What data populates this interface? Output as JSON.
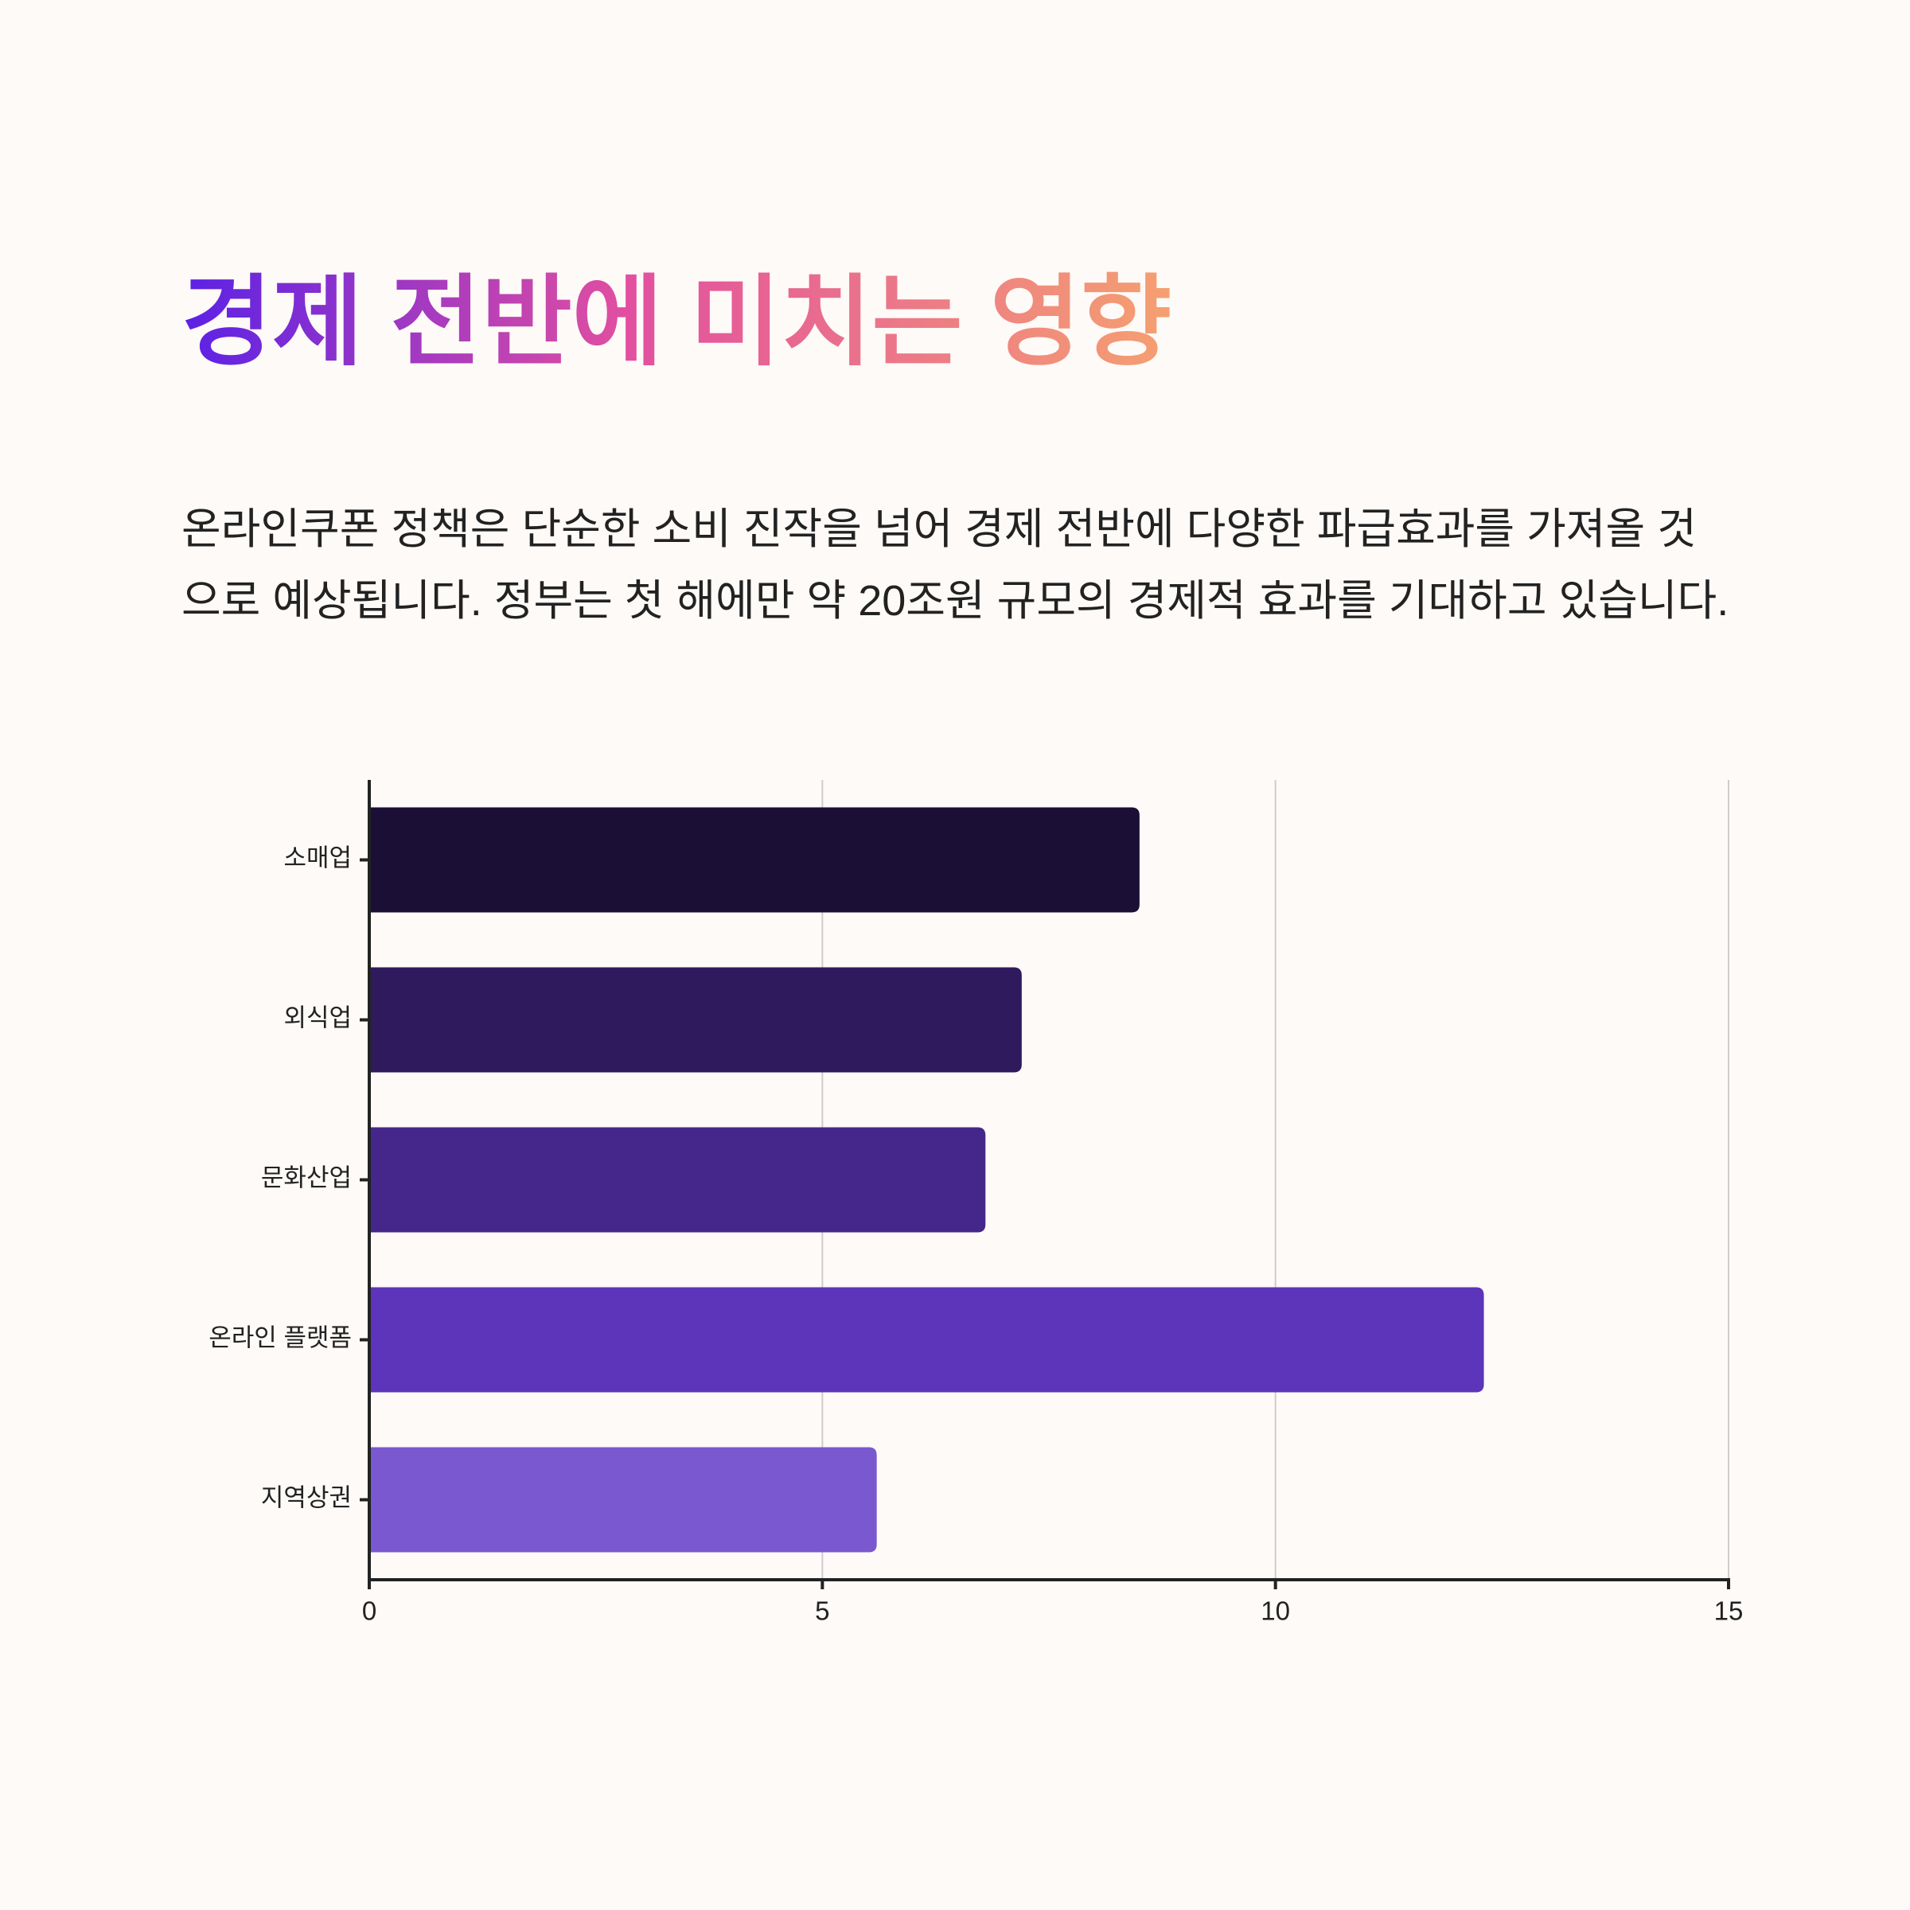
{
  "chart_data": {
    "type": "bar",
    "orientation": "horizontal",
    "title": "경제 전반에 미치는 영향",
    "subtitle": "온라인쿠폰 정책은 단순한 소비 진작을 넘어 경제 전반에 다양한 파급효과를 가져올 것으로 예상됩니다. 정부는 첫 해에만 약 20조원 규모의 경제적 효과를 기대하고 있습니다.",
    "categories": [
      "소매업",
      "외식업",
      "문화산업",
      "온라인 플랫폼",
      "지역상권"
    ],
    "values": [
      8.5,
      7.2,
      6.8,
      12.3,
      5.6
    ],
    "colors": [
      "#1b0f36",
      "#301a5e",
      "#45278b",
      "#5c35ba",
      "#7a58cf"
    ],
    "xlim": [
      0,
      15
    ],
    "xticks": [
      0,
      5,
      10,
      15
    ],
    "grid": true
  }
}
